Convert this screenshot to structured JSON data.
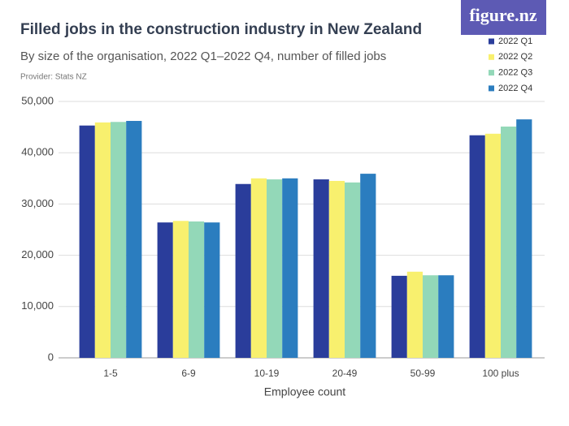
{
  "logo": "figure.nz",
  "chart_data": {
    "type": "bar",
    "title": "Filled jobs in the construction industry in New Zealand",
    "subtitle": "By size of the organisation, 2022 Q1–2022 Q4, number of filled jobs",
    "provider": "Provider: Stats NZ",
    "x_label": "Employee count",
    "categories": [
      "1-5",
      "6-9",
      "10-19",
      "20-49",
      "50-99",
      "100 plus"
    ],
    "series": [
      {
        "name": "2022 Q1",
        "color": "#2a3d9b",
        "values": [
          45300,
          26400,
          33900,
          34800,
          16000,
          43400
        ]
      },
      {
        "name": "2022 Q2",
        "color": "#f8f06e",
        "values": [
          45900,
          26700,
          35000,
          34500,
          16800,
          43700
        ]
      },
      {
        "name": "2022 Q3",
        "color": "#93d8b8",
        "values": [
          46000,
          26600,
          34800,
          34200,
          16100,
          45100
        ]
      },
      {
        "name": "2022 Q4",
        "color": "#2b7dbf",
        "values": [
          46200,
          26400,
          35000,
          35900,
          16100,
          46500
        ]
      }
    ],
    "ylim": [
      0,
      50000
    ],
    "yticks": [
      0,
      {
        "value": 10000,
        "label": "10,000"
      },
      {
        "value": 20000,
        "label": "20,000"
      },
      {
        "value": 30000,
        "label": "30,000"
      },
      {
        "value": 40000,
        "label": "40,000"
      },
      {
        "value": 50000,
        "label": "50,000"
      }
    ],
    "grid": true,
    "legend": "top-right"
  }
}
